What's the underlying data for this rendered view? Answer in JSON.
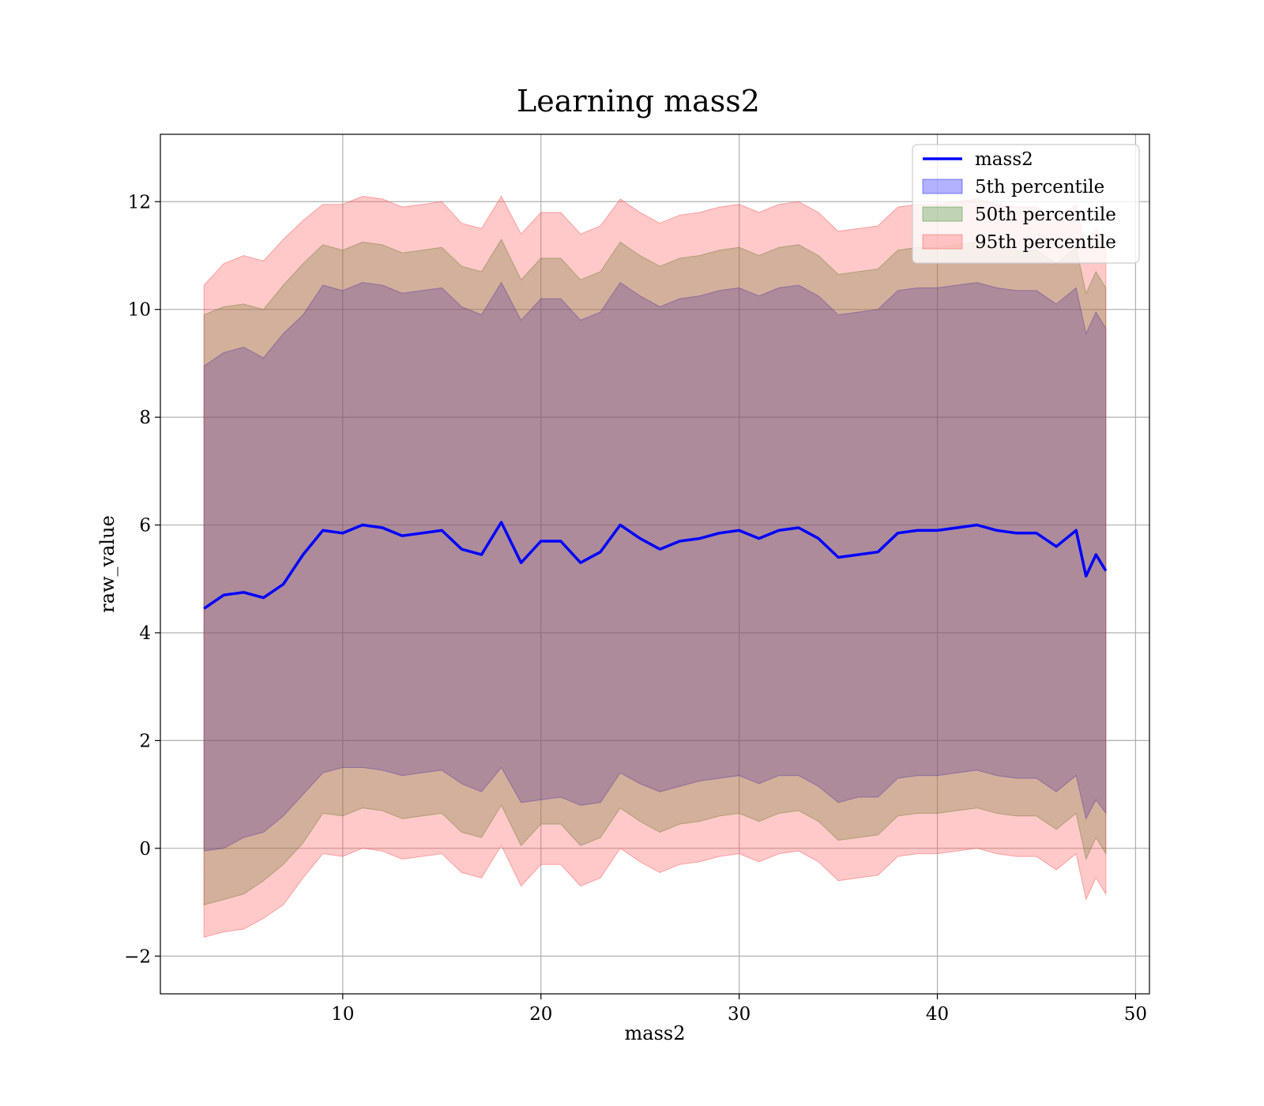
{
  "chart_data": {
    "type": "area",
    "title": "Learning mass2",
    "xlabel": "mass2",
    "ylabel": "raw_value",
    "xlim": [
      0.8,
      50.7
    ],
    "ylim": [
      -2.7,
      13.25
    ],
    "x_ticks": [
      10,
      20,
      30,
      40,
      50
    ],
    "y_ticks": [
      -2,
      0,
      2,
      4,
      6,
      8,
      10,
      12
    ],
    "grid": true,
    "legend_position": "top-right",
    "x": [
      3.0,
      4.0,
      5.0,
      6.0,
      7.0,
      8.0,
      9.0,
      10.0,
      11.0,
      12.0,
      13.0,
      14.0,
      15.0,
      16.0,
      17.0,
      18.0,
      19.0,
      20.0,
      21.0,
      22.0,
      23.0,
      24.0,
      25.0,
      26.0,
      27.0,
      28.0,
      29.0,
      30.0,
      31.0,
      32.0,
      33.0,
      34.0,
      35.0,
      36.0,
      37.0,
      38.0,
      39.0,
      40.0,
      41.0,
      42.0,
      43.0,
      44.0,
      45.0,
      46.0,
      47.0,
      47.5,
      48.0,
      48.5
    ],
    "series": [
      {
        "name": "mass2",
        "kind": "line",
        "color": "#0000ff",
        "values": [
          4.45,
          4.7,
          4.75,
          4.65,
          4.9,
          5.45,
          5.9,
          5.85,
          6.0,
          5.95,
          5.8,
          5.85,
          5.9,
          5.55,
          5.45,
          6.05,
          5.3,
          5.7,
          5.7,
          5.3,
          5.5,
          6.0,
          5.75,
          5.55,
          5.7,
          5.75,
          5.85,
          5.9,
          5.75,
          5.9,
          5.95,
          5.75,
          5.4,
          5.45,
          5.5,
          5.85,
          5.9,
          5.9,
          5.95,
          6.0,
          5.9,
          5.85,
          5.85,
          5.6,
          5.9,
          5.05,
          5.45,
          5.15
        ]
      },
      {
        "name": "5th percentile",
        "kind": "band",
        "color": "#0000ff",
        "lower": [
          -0.05,
          0.0,
          0.2,
          0.3,
          0.6,
          1.0,
          1.4,
          1.5,
          1.5,
          1.45,
          1.35,
          1.4,
          1.45,
          1.2,
          1.05,
          1.5,
          0.85,
          0.9,
          0.95,
          0.8,
          0.85,
          1.4,
          1.2,
          1.05,
          1.15,
          1.25,
          1.3,
          1.35,
          1.2,
          1.35,
          1.35,
          1.15,
          0.85,
          0.95,
          0.95,
          1.3,
          1.35,
          1.35,
          1.4,
          1.45,
          1.35,
          1.3,
          1.3,
          1.05,
          1.35,
          0.55,
          0.9,
          0.65
        ],
        "upper": [
          8.95,
          9.2,
          9.3,
          9.1,
          9.55,
          9.9,
          10.45,
          10.35,
          10.5,
          10.45,
          10.3,
          10.35,
          10.4,
          10.05,
          9.9,
          10.5,
          9.8,
          10.2,
          10.2,
          9.8,
          9.95,
          10.5,
          10.25,
          10.05,
          10.2,
          10.25,
          10.35,
          10.4,
          10.25,
          10.4,
          10.45,
          10.25,
          9.9,
          9.95,
          10.0,
          10.35,
          10.4,
          10.4,
          10.45,
          10.5,
          10.4,
          10.35,
          10.35,
          10.1,
          10.4,
          9.55,
          9.95,
          9.65
        ]
      },
      {
        "name": "50th percentile",
        "kind": "band",
        "color": "#2e8b23",
        "lower": [
          -1.05,
          -0.95,
          -0.85,
          -0.6,
          -0.3,
          0.1,
          0.65,
          0.6,
          0.75,
          0.7,
          0.55,
          0.6,
          0.65,
          0.3,
          0.2,
          0.8,
          0.05,
          0.45,
          0.45,
          0.05,
          0.2,
          0.75,
          0.5,
          0.3,
          0.45,
          0.5,
          0.6,
          0.65,
          0.5,
          0.65,
          0.7,
          0.5,
          0.15,
          0.2,
          0.25,
          0.6,
          0.65,
          0.65,
          0.7,
          0.75,
          0.65,
          0.6,
          0.6,
          0.35,
          0.65,
          -0.2,
          0.2,
          -0.1
        ],
        "upper": [
          9.9,
          10.05,
          10.1,
          10.0,
          10.45,
          10.85,
          11.2,
          11.1,
          11.25,
          11.2,
          11.05,
          11.1,
          11.15,
          10.8,
          10.7,
          11.3,
          10.55,
          10.95,
          10.95,
          10.55,
          10.7,
          11.25,
          11.0,
          10.8,
          10.95,
          11.0,
          11.1,
          11.15,
          11.0,
          11.15,
          11.2,
          11.0,
          10.65,
          10.7,
          10.75,
          11.1,
          11.15,
          11.15,
          11.2,
          11.25,
          11.15,
          11.1,
          11.1,
          10.85,
          11.15,
          10.3,
          10.7,
          10.4
        ]
      },
      {
        "name": "95th percentile",
        "kind": "band",
        "color": "#ff4b4b",
        "lower": [
          -1.65,
          -1.55,
          -1.5,
          -1.3,
          -1.05,
          -0.55,
          -0.1,
          -0.15,
          0.0,
          -0.05,
          -0.2,
          -0.15,
          -0.1,
          -0.45,
          -0.55,
          0.05,
          -0.7,
          -0.3,
          -0.3,
          -0.7,
          -0.55,
          0.0,
          -0.25,
          -0.45,
          -0.3,
          -0.25,
          -0.15,
          -0.1,
          -0.25,
          -0.1,
          -0.05,
          -0.25,
          -0.6,
          -0.55,
          -0.5,
          -0.15,
          -0.1,
          -0.1,
          -0.05,
          0.0,
          -0.1,
          -0.15,
          -0.15,
          -0.4,
          -0.1,
          -0.95,
          -0.55,
          -0.85
        ],
        "upper": [
          10.45,
          10.85,
          11.0,
          10.9,
          11.3,
          11.65,
          11.95,
          11.95,
          12.1,
          12.05,
          11.9,
          11.95,
          12.0,
          11.6,
          11.5,
          12.1,
          11.4,
          11.8,
          11.8,
          11.4,
          11.55,
          12.05,
          11.8,
          11.6,
          11.75,
          11.8,
          11.9,
          11.95,
          11.8,
          11.95,
          12.0,
          11.8,
          11.45,
          11.5,
          11.55,
          11.9,
          11.95,
          11.95,
          12.0,
          12.05,
          11.95,
          11.9,
          11.9,
          11.65,
          11.95,
          11.1,
          11.5,
          11.2
        ]
      }
    ]
  }
}
